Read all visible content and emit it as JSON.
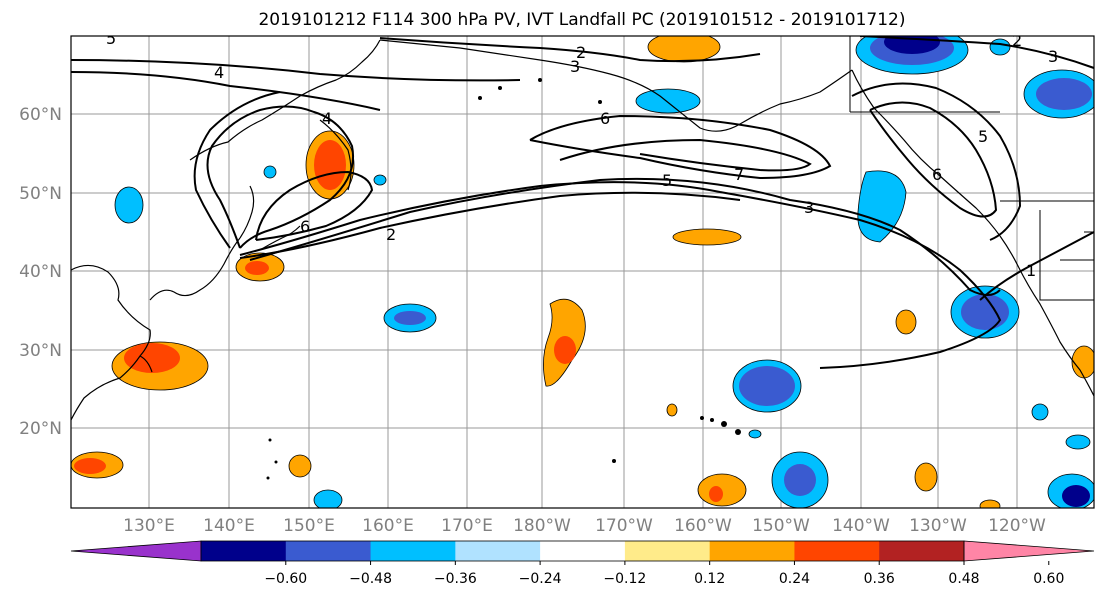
{
  "title": "2019101212 F114 300 hPa PV, IVT Landfall PC (2019101512 - 2019101712)",
  "lat_labels": [
    "20°N",
    "30°N",
    "40°N",
    "50°N",
    "60°N"
  ],
  "lon_labels": [
    "130°E",
    "140°E",
    "150°E",
    "160°E",
    "170°E",
    "180°W",
    "170°W",
    "160°W",
    "150°W",
    "140°W",
    "130°W",
    "120°W"
  ],
  "colorbar": {
    "tick_labels": [
      "−0.60",
      "−0.48",
      "−0.36",
      "−0.24",
      "−0.12",
      "0.12",
      "0.24",
      "0.36",
      "0.48",
      "0.60"
    ],
    "colors": [
      "#9932cc",
      "#00008b",
      "#3a5bd0",
      "#00bfff",
      "#b0e2ff",
      "#ffffff",
      "#ffeb8a",
      "#ffa500",
      "#ff4500",
      "#b22222",
      "#ff85a6"
    ]
  },
  "contour_labels": [
    "5",
    "4",
    "2",
    "3",
    "4",
    "6",
    "7",
    "5",
    "3",
    "2",
    "6",
    "6",
    "5",
    "3",
    "1",
    "2"
  ]
}
